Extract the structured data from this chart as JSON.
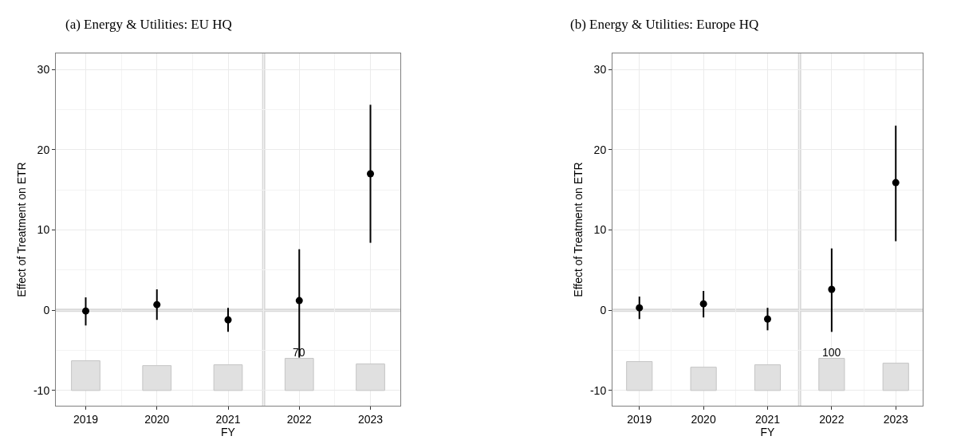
{
  "chart_data": [
    {
      "type": "scatter",
      "title": "(a) Energy & Utilities: EU HQ",
      "xlabel": "FY",
      "ylabel": "Effect of Treatment on ETR",
      "x": [
        2019,
        2020,
        2021,
        2022,
        2023
      ],
      "xlim": [
        2018.58,
        2023.42
      ],
      "xticks": [
        2019,
        2020,
        2021,
        2022,
        2023
      ],
      "ylim": [
        -11.9,
        32
      ],
      "yticks": [
        -10,
        0,
        10,
        20,
        30
      ],
      "grid": true,
      "marker": "circle",
      "ref_lines": [
        {
          "axis": "x",
          "value": 2021.5,
          "color": "#d9d9d9"
        },
        {
          "axis": "y",
          "value": 0,
          "color": "#d9d9d9"
        }
      ],
      "series": [
        {
          "type": "bar",
          "color": "#e0e0e0",
          "base": [
            -10,
            -10,
            -10,
            -10,
            -10
          ],
          "values": [
            3.7,
            3.1,
            3.2,
            4.0,
            3.3
          ]
        },
        {
          "color": "#000000",
          "values": [
            -0.1,
            0.7,
            -1.2,
            1.2,
            17.0
          ],
          "errors": [
            [
              -1.9,
              1.6
            ],
            [
              -1.2,
              2.6
            ],
            [
              -2.7,
              0.3
            ],
            [
              -5.9,
              7.6
            ],
            [
              8.4,
              25.6
            ]
          ]
        }
      ],
      "annotations": [
        {
          "text": "70",
          "x": 2022,
          "y": -6.0
        }
      ]
    },
    {
      "type": "scatter",
      "title": "(b) Energy & Utilities: Europe HQ",
      "xlabel": "FY",
      "ylabel": "Effect of Treatment on ETR",
      "x": [
        2019,
        2020,
        2021,
        2022,
        2023
      ],
      "xlim": [
        2018.58,
        2023.42
      ],
      "xticks": [
        2019,
        2020,
        2021,
        2022,
        2023
      ],
      "ylim": [
        -11.9,
        32
      ],
      "yticks": [
        -10,
        0,
        10,
        20,
        30
      ],
      "grid": true,
      "marker": "circle",
      "ref_lines": [
        {
          "axis": "x",
          "value": 2021.5,
          "color": "#d9d9d9"
        },
        {
          "axis": "y",
          "value": 0,
          "color": "#d9d9d9"
        }
      ],
      "series": [
        {
          "type": "bar",
          "color": "#e0e0e0",
          "base": [
            -10,
            -10,
            -10,
            -10,
            -10
          ],
          "values": [
            3.6,
            2.9,
            3.2,
            4.0,
            3.4
          ]
        },
        {
          "color": "#000000",
          "values": [
            0.3,
            0.8,
            -1.1,
            2.6,
            15.9
          ],
          "errors": [
            [
              -1.1,
              1.7
            ],
            [
              -0.9,
              2.4
            ],
            [
              -2.5,
              0.3
            ],
            [
              -2.7,
              7.7
            ],
            [
              8.6,
              23.0
            ]
          ]
        }
      ],
      "annotations": [
        {
          "text": "100",
          "x": 2022,
          "y": -6.0
        }
      ]
    }
  ]
}
